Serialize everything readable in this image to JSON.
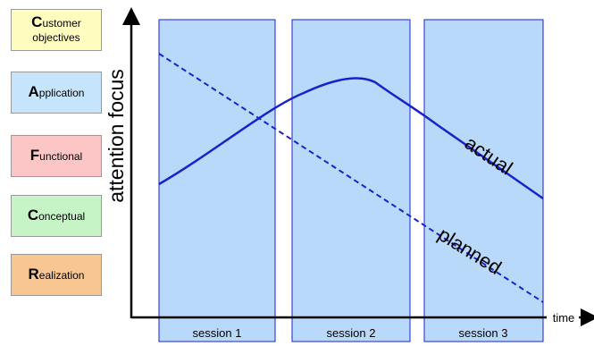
{
  "legend": [
    {
      "cap": "C",
      "rest": "ustomer",
      "rest2": "objectives",
      "color": "#fffcc0"
    },
    {
      "cap": "A",
      "rest": "pplication",
      "color": "#c6e4fb"
    },
    {
      "cap": "F",
      "rest": "unctional",
      "color": "#fcc6c6"
    },
    {
      "cap": "C",
      "rest": "onceptual",
      "color": "#c6f4c6"
    },
    {
      "cap": "R",
      "rest": "ealization",
      "color": "#f8c693"
    }
  ],
  "axes": {
    "ylabel": "attention focus",
    "xlabel": "time"
  },
  "sessions": [
    "session 1",
    "session 2",
    "session 3"
  ],
  "curves": {
    "actual_label": "actual",
    "planned_label": "planned"
  },
  "colors": {
    "session_fill": "#b9d9fa",
    "session_stroke": "#1a22cc",
    "curve": "#1a22cc",
    "axis": "#000000"
  }
}
